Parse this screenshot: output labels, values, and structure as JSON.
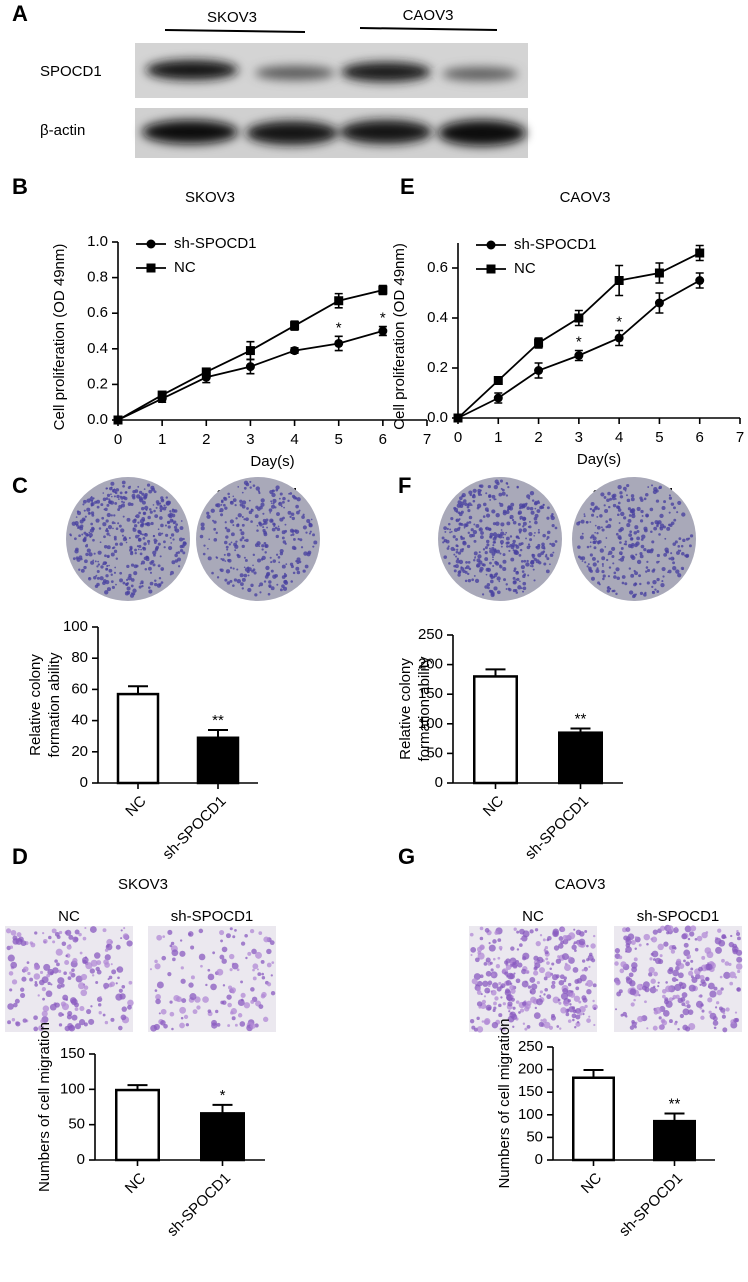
{
  "blot": {
    "panel": "A",
    "cell_lines": [
      "SKOV3",
      "CAOV3"
    ],
    "rows": [
      "SPOCD1",
      "β-actin"
    ]
  },
  "chart_data": [
    {
      "type": "line",
      "panel": "B",
      "title": "SKOV3",
      "xlabel": "Day(s)",
      "ylabel": "Cell proliferation (OD 49nm)",
      "x": [
        0,
        1,
        2,
        3,
        4,
        5,
        6
      ],
      "xlim": [
        0,
        7
      ],
      "xticks": [
        0,
        1,
        2,
        3,
        4,
        5,
        6,
        7
      ],
      "ylim": [
        0,
        1.0
      ],
      "yticks": [
        {
          "value": 0,
          "label": "0.0"
        },
        0.2,
        0.4,
        0.6,
        0.8,
        {
          "value": 1.0,
          "label": "1.0"
        }
      ],
      "grid": false,
      "legend": "upper left",
      "series": [
        {
          "name": "sh-SPOCD1",
          "color": "#000000",
          "marker": "circle",
          "values": [
            0,
            0.12,
            0.24,
            0.3,
            0.39,
            0.43,
            0.5
          ],
          "errors": [
            0,
            0.02,
            0.03,
            0.04,
            0.015,
            0.04,
            0.025
          ]
        },
        {
          "name": "NC",
          "color": "#000000",
          "marker": "square",
          "values": [
            0,
            0.14,
            0.27,
            0.39,
            0.53,
            0.67,
            0.73
          ],
          "errors": [
            0,
            0.02,
            0.02,
            0.05,
            0.025,
            0.04,
            0.025
          ]
        }
      ],
      "annotations": [
        {
          "x": 5,
          "text": "*"
        },
        {
          "x": 6,
          "text": "*"
        }
      ]
    },
    {
      "type": "line",
      "panel": "E",
      "title": "CAOV3",
      "xlabel": "Day(s)",
      "ylabel": "Cell proliferation (OD 49nm)",
      "x": [
        0,
        1,
        2,
        3,
        4,
        5,
        6
      ],
      "xlim": [
        0,
        7
      ],
      "xticks": [
        0,
        1,
        2,
        3,
        4,
        5,
        6,
        7
      ],
      "ylim": [
        0,
        0.7
      ],
      "yticks": [
        {
          "value": 0,
          "label": "0.0"
        },
        0.2,
        0.4,
        0.6
      ],
      "grid": false,
      "legend": "upper left",
      "series": [
        {
          "name": "sh-SPOCD1",
          "color": "#000000",
          "marker": "circle",
          "values": [
            0,
            0.08,
            0.19,
            0.25,
            0.32,
            0.46,
            0.55
          ],
          "errors": [
            0,
            0.02,
            0.03,
            0.02,
            0.03,
            0.04,
            0.03
          ]
        },
        {
          "name": "NC",
          "color": "#000000",
          "marker": "square",
          "values": [
            0,
            0.15,
            0.3,
            0.4,
            0.55,
            0.58,
            0.66
          ],
          "errors": [
            0,
            0.01,
            0.02,
            0.03,
            0.06,
            0.04,
            0.03
          ]
        }
      ],
      "annotations": [
        {
          "x": 3,
          "text": "*"
        },
        {
          "x": 4,
          "text": "*"
        }
      ]
    },
    {
      "type": "bar",
      "panel": "C",
      "image_labels": [
        "NC",
        "sh-SPOCD1"
      ],
      "image_style": "dish",
      "ylabel": [
        "Relative colony",
        "formation ability"
      ],
      "categories": [
        "NC",
        "sh-SPOCD1"
      ],
      "values": [
        57,
        29
      ],
      "errors": [
        5,
        5
      ],
      "colors": [
        "#ffffff",
        "#000000"
      ],
      "ylim": [
        0,
        100
      ],
      "yticks": [
        0,
        20,
        40,
        60,
        80,
        100
      ],
      "grid": false,
      "annotations": [
        {
          "x": "sh-SPOCD1",
          "text": "**"
        }
      ]
    },
    {
      "type": "bar",
      "panel": "F",
      "image_labels": [
        "NC",
        "sh-SPOCD1"
      ],
      "image_style": "dish",
      "ylabel": [
        "Relative colony",
        "formation ability"
      ],
      "categories": [
        "NC",
        "sh-SPOCD1"
      ],
      "values": [
        180,
        85
      ],
      "errors": [
        12,
        7
      ],
      "colors": [
        "#ffffff",
        "#000000"
      ],
      "ylim": [
        0,
        250
      ],
      "yticks": [
        0,
        50,
        100,
        150,
        200,
        250
      ],
      "grid": false,
      "annotations": [
        {
          "x": "sh-SPOCD1",
          "text": "**"
        }
      ]
    },
    {
      "type": "bar",
      "panel": "D",
      "title": "SKOV3",
      "image_labels": [
        "NC",
        "sh-SPOCD1"
      ],
      "image_style": "field",
      "ylabel": [
        "Numbers of cell migration"
      ],
      "categories": [
        "NC",
        "sh-SPOCD1"
      ],
      "values": [
        99,
        66
      ],
      "errors": [
        7,
        12
      ],
      "colors": [
        "#ffffff",
        "#000000"
      ],
      "ylim": [
        0,
        150
      ],
      "yticks": [
        0,
        50,
        100,
        150
      ],
      "grid": false,
      "annotations": [
        {
          "x": "sh-SPOCD1",
          "text": "*"
        }
      ]
    },
    {
      "type": "bar",
      "panel": "G",
      "title": "CAOV3",
      "image_labels": [
        "NC",
        "sh-SPOCD1"
      ],
      "image_style": "field",
      "ylabel": [
        "Numbers of cell migration"
      ],
      "categories": [
        "NC",
        "sh-SPOCD1"
      ],
      "values": [
        182,
        86
      ],
      "errors": [
        17,
        17
      ],
      "colors": [
        "#ffffff",
        "#000000"
      ],
      "ylim": [
        0,
        250
      ],
      "yticks": [
        0,
        50,
        100,
        150,
        200,
        250
      ],
      "grid": false,
      "annotations": [
        {
          "x": "sh-SPOCD1",
          "text": "**"
        }
      ]
    }
  ]
}
